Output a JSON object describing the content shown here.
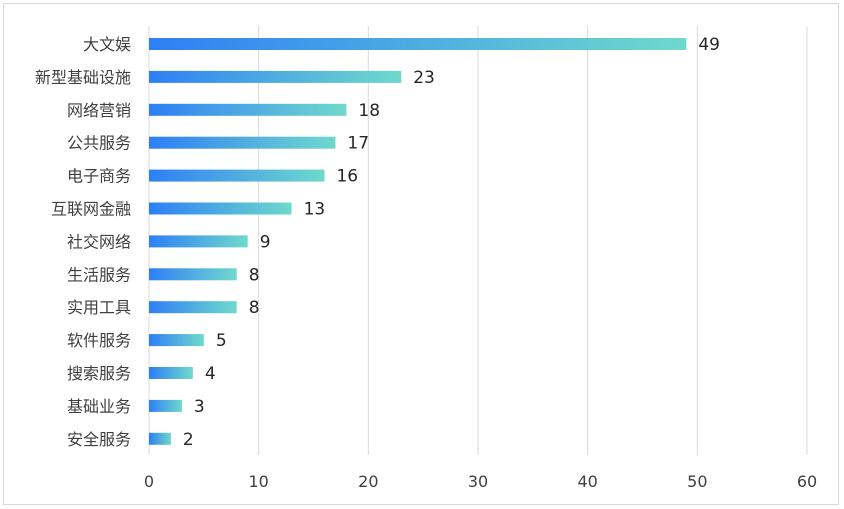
{
  "chart_data": {
    "type": "bar",
    "orientation": "horizontal",
    "title": "",
    "xlabel": "",
    "ylabel": "",
    "categories": [
      "大文娱",
      "新型基础设施",
      "网络营销",
      "公共服务",
      "电子商务",
      "互联网金融",
      "社交网络",
      "生活服务",
      "实用工具",
      "软件服务",
      "搜索服务",
      "基础业务",
      "安全服务"
    ],
    "values": [
      49,
      23,
      18,
      17,
      16,
      13,
      9,
      8,
      8,
      5,
      4,
      3,
      2
    ],
    "xlim": [
      0,
      60
    ],
    "xticks": [
      0,
      10,
      20,
      30,
      40,
      50,
      60
    ],
    "grid": true,
    "data_labels": true,
    "colors": {
      "bar_start": "#2e7ff5",
      "bar_end": "#6fd9cc",
      "grid": "#d9d9d9",
      "text": "#404040"
    }
  }
}
